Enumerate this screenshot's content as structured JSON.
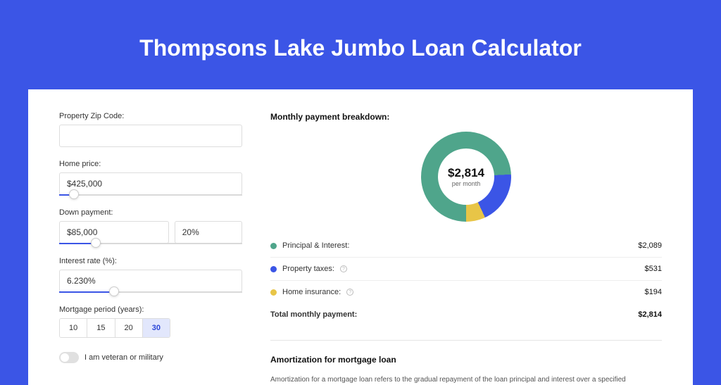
{
  "header": {
    "title": "Thompsons Lake Jumbo Loan Calculator"
  },
  "form": {
    "zip": {
      "label": "Property Zip Code:",
      "value": ""
    },
    "home_price": {
      "label": "Home price:",
      "value": "$425,000",
      "slider_pct": 8
    },
    "down_payment": {
      "label": "Down payment:",
      "value": "$85,000",
      "percent": "20%",
      "slider_pct": 20
    },
    "interest_rate": {
      "label": "Interest rate (%):",
      "value": "6.230%",
      "slider_pct": 30
    },
    "mortgage_period": {
      "label": "Mortgage period (years):",
      "options": [
        "10",
        "15",
        "20",
        "30"
      ],
      "selected_index": 3
    },
    "veteran": {
      "label": "I am veteran or military",
      "on": false
    }
  },
  "breakdown": {
    "title": "Monthly payment breakdown:",
    "donut": {
      "amount": "$2,814",
      "sublabel": "per month",
      "slices": [
        {
          "color": "#4fa58b",
          "pct": 74.2
        },
        {
          "color": "#3b55e6",
          "pct": 18.9
        },
        {
          "color": "#e8c547",
          "pct": 6.9
        }
      ]
    },
    "rows": [
      {
        "label": "Principal & Interest:",
        "value": "$2,089",
        "color": "#4fa58b",
        "info": false
      },
      {
        "label": "Property taxes:",
        "value": "$531",
        "color": "#3b55e6",
        "info": true
      },
      {
        "label": "Home insurance:",
        "value": "$194",
        "color": "#e8c547",
        "info": true
      }
    ],
    "total": {
      "label": "Total monthly payment:",
      "value": "$2,814"
    }
  },
  "amortization": {
    "title": "Amortization for mortgage loan",
    "text": "Amortization for a mortgage loan refers to the gradual repayment of the loan principal and interest over a specified"
  }
}
